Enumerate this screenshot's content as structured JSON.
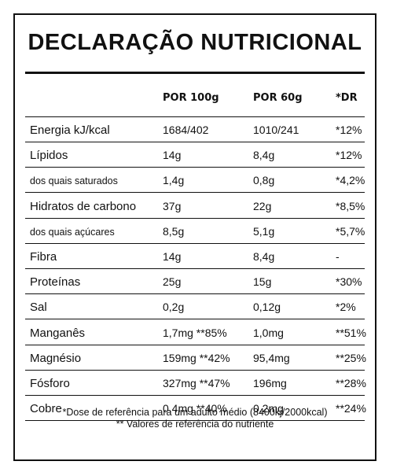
{
  "title": "DECLARAÇÃO NUTRICIONAL",
  "columns": [
    "POR 100g",
    "POR 60g",
    "*DR"
  ],
  "rows": [
    {
      "nutrient": "Energia kJ/kcal",
      "per100": "1684/402",
      "per60": "1010/241",
      "dr": "*12%",
      "sub": false
    },
    {
      "nutrient": "Lípidos",
      "per100": "14g",
      "per60": "8,4g",
      "dr": "*12%",
      "sub": false
    },
    {
      "nutrient": "dos quais saturados",
      "per100": "1,4g",
      "per60": "0,8g",
      "dr": "*4,2%",
      "sub": true
    },
    {
      "nutrient": "Hidratos de carbono",
      "per100": "37g",
      "per60": "22g",
      "dr": "*8,5%",
      "sub": false
    },
    {
      "nutrient": "dos quais açúcares",
      "per100": "8,5g",
      "per60": "5,1g",
      "dr": "*5,7%",
      "sub": true
    },
    {
      "nutrient": "Fibra",
      "per100": "14g",
      "per60": "8,4g",
      "dr": "-",
      "sub": false
    },
    {
      "nutrient": "Proteínas",
      "per100": "25g",
      "per60": "15g",
      "dr": "*30%",
      "sub": false
    },
    {
      "nutrient": "Sal",
      "per100": "0,2g",
      "per60": "0,12g",
      "dr": "*2%",
      "sub": false
    },
    {
      "nutrient": "Manganês",
      "per100": "1,7mg **85%",
      "per60": "1,0mg",
      "dr": "**51%",
      "sub": false
    },
    {
      "nutrient": "Magnésio",
      "per100": "159mg **42%",
      "per60": "95,4mg",
      "dr": "**25%",
      "sub": false
    },
    {
      "nutrient": "Fósforo",
      "per100": "327mg **47%",
      "per60": "196mg",
      "dr": "**28%",
      "sub": false
    },
    {
      "nutrient": "Cobre",
      "per100": "0,4mg **40%",
      "per60": "0,2mg",
      "dr": "**24%",
      "sub": false
    }
  ],
  "footnotes": [
    "*Dose de referência para um adulto médio (8400kj/2000kcal)",
    "** Valores de referência do nutriente"
  ]
}
